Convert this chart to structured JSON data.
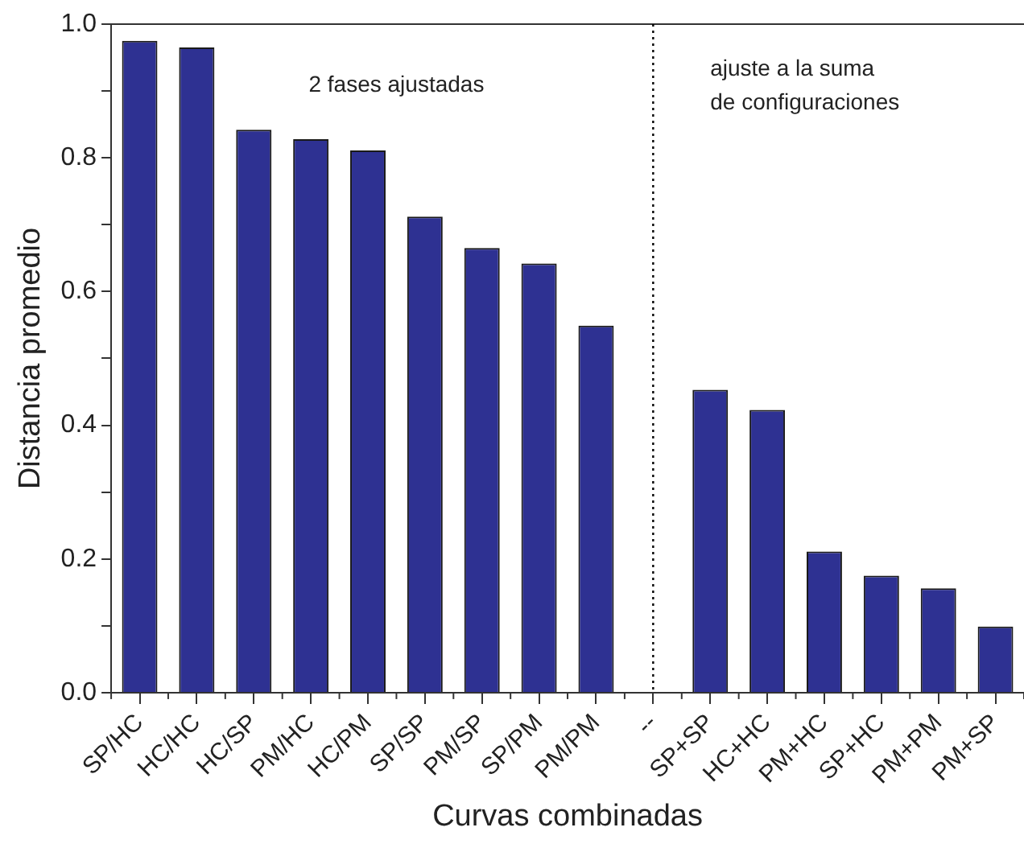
{
  "chart_data": {
    "type": "bar",
    "xlabel": "Curvas combinadas",
    "ylabel": "Distancia promedio",
    "categories": [
      "SP/HC",
      "HC/HC",
      "HC/SP",
      "PM/HC",
      "HC/PM",
      "SP/SP",
      "PM/SP",
      "SP/PM",
      "PM/PM",
      "--",
      "SP+SP",
      "HC+HC",
      "PM+HC",
      "SP+HC",
      "PM+PM",
      "PM+SP"
    ],
    "values": [
      0.975,
      0.965,
      0.842,
      0.828,
      0.811,
      0.712,
      0.665,
      0.642,
      0.549,
      null,
      0.453,
      0.423,
      0.211,
      0.175,
      0.156,
      0.099
    ],
    "color": "#2e3192",
    "ylim": [
      0,
      1
    ],
    "yticks": [
      {
        "value": 0,
        "label": "0.0"
      },
      {
        "value": 0.1,
        "label": null
      },
      0.2,
      {
        "value": 0.3,
        "label": null
      },
      0.4,
      {
        "value": 0.5,
        "label": null
      },
      0.6,
      {
        "value": 0.7,
        "label": null
      },
      0.8,
      {
        "value": 0.9,
        "label": null
      },
      {
        "value": 1,
        "label": "1.0"
      }
    ],
    "ref_lines": [
      {
        "axis": "x",
        "value": "--",
        "color": "#000000",
        "line_style": "dotted"
      }
    ],
    "annotations": [
      "2 fases ajustadas",
      "ajuste a la suma\nde configuraciones"
    ],
    "grid": false,
    "legend": false
  }
}
